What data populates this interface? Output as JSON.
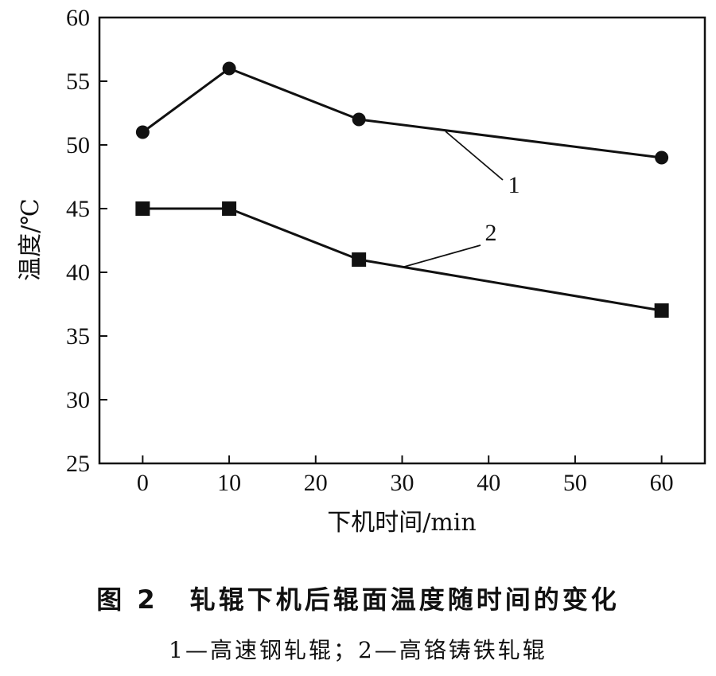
{
  "chart_data": {
    "type": "line",
    "x": [
      0,
      10,
      25,
      60
    ],
    "series": [
      {
        "name": "1",
        "marker": "circle",
        "values": [
          51,
          56,
          52,
          49
        ]
      },
      {
        "name": "2",
        "marker": "square",
        "values": [
          45,
          45,
          41,
          37
        ]
      }
    ],
    "xlabel": "下机时间/min",
    "ylabel": "温度/℃",
    "xlim": [
      -5,
      65
    ],
    "ylim": [
      25,
      60
    ],
    "xticks": [
      0,
      10,
      20,
      30,
      40,
      50,
      60
    ],
    "yticks": [
      25,
      30,
      35,
      40,
      45,
      50,
      55,
      60
    ],
    "grid": false,
    "line_color": "#111111"
  },
  "caption": {
    "figure_number": "图 2",
    "title": "轧辊下机后辊面温度随时间的变化",
    "note": "1—高速钢轧辊；2—高铬铸铁轧辊"
  }
}
